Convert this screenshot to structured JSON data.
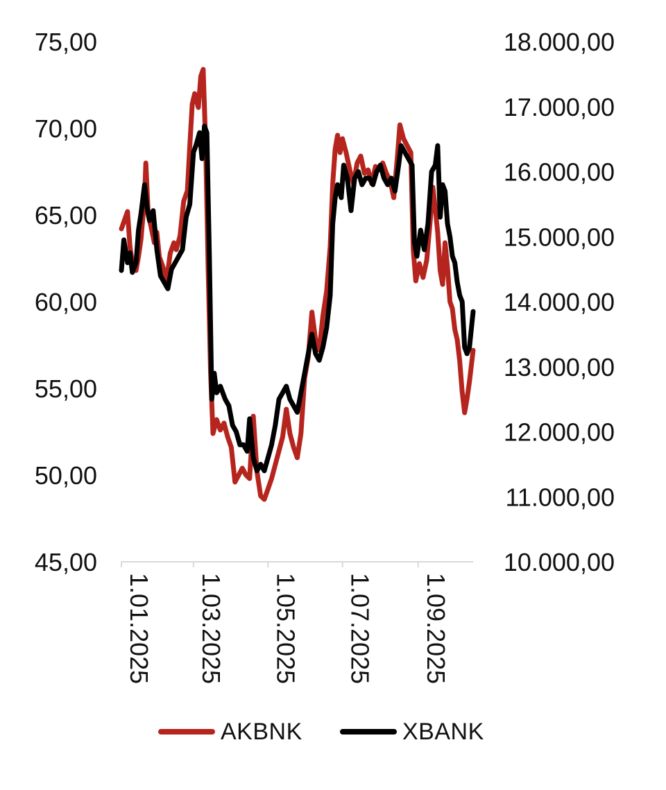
{
  "chart_data": {
    "type": "line",
    "x_type": "date",
    "x_ticks": [
      "1.01.2025",
      "1.03.2025",
      "1.05.2025",
      "1.07.2025",
      "1.09.2025"
    ],
    "x_range": [
      "2025-01-01",
      "2025-10-16"
    ],
    "y_left": {
      "range": [
        45,
        75
      ],
      "ticks": [
        "45,00",
        "50,00",
        "55,00",
        "60,00",
        "65,00",
        "70,00",
        "75,00"
      ]
    },
    "y_right": {
      "range": [
        10000,
        18000
      ],
      "ticks": [
        "10.000,00",
        "11.000,00",
        "12.000,00",
        "13.000,00",
        "14.000,00",
        "15.000,00",
        "16.000,00",
        "17.000,00",
        "18.000,00"
      ]
    },
    "grid": false,
    "legend_position": "bottom",
    "colors": {
      "AKBNK": "#b5251d",
      "XBANK": "#000000"
    },
    "series": [
      {
        "name": "AKBNK",
        "axis": "left",
        "points": [
          [
            "2025-01-01",
            64.2
          ],
          [
            "2025-01-03",
            64.6
          ],
          [
            "2025-01-06",
            65.2
          ],
          [
            "2025-01-08",
            63.2
          ],
          [
            "2025-01-10",
            62.2
          ],
          [
            "2025-01-13",
            61.8
          ],
          [
            "2025-01-15",
            62.6
          ],
          [
            "2025-01-17",
            63.6
          ],
          [
            "2025-01-20",
            66.0
          ],
          [
            "2025-01-21",
            68.0
          ],
          [
            "2025-01-23",
            65.0
          ],
          [
            "2025-01-25",
            64.4
          ],
          [
            "2025-01-28",
            63.4
          ],
          [
            "2025-01-30",
            64.0
          ],
          [
            "2025-02-01",
            62.6
          ],
          [
            "2025-02-04",
            62.0
          ],
          [
            "2025-02-07",
            61.2
          ],
          [
            "2025-02-10",
            62.8
          ],
          [
            "2025-02-13",
            63.4
          ],
          [
            "2025-02-15",
            63.0
          ],
          [
            "2025-02-18",
            63.8
          ],
          [
            "2025-02-21",
            65.8
          ],
          [
            "2025-02-24",
            66.4
          ],
          [
            "2025-02-26",
            69.0
          ],
          [
            "2025-02-28",
            71.4
          ],
          [
            "2025-03-02",
            72.0
          ],
          [
            "2025-03-05",
            71.2
          ],
          [
            "2025-03-07",
            73.0
          ],
          [
            "2025-03-09",
            73.4
          ],
          [
            "2025-03-11",
            69.0
          ],
          [
            "2025-03-13",
            62.0
          ],
          [
            "2025-03-15",
            56.0
          ],
          [
            "2025-03-17",
            52.4
          ],
          [
            "2025-03-20",
            53.2
          ],
          [
            "2025-03-23",
            52.6
          ],
          [
            "2025-03-26",
            53.0
          ],
          [
            "2025-03-29",
            52.2
          ],
          [
            "2025-04-01",
            51.6
          ],
          [
            "2025-04-04",
            49.6
          ],
          [
            "2025-04-07",
            50.0
          ],
          [
            "2025-04-10",
            50.4
          ],
          [
            "2025-04-13",
            50.0
          ],
          [
            "2025-04-16",
            49.8
          ],
          [
            "2025-04-19",
            53.4
          ],
          [
            "2025-04-22",
            50.2
          ],
          [
            "2025-04-25",
            48.8
          ],
          [
            "2025-04-28",
            48.6
          ],
          [
            "2025-05-01",
            49.2
          ],
          [
            "2025-05-04",
            49.8
          ],
          [
            "2025-05-07",
            50.6
          ],
          [
            "2025-05-10",
            51.4
          ],
          [
            "2025-05-13",
            52.2
          ],
          [
            "2025-05-16",
            53.8
          ],
          [
            "2025-05-19",
            52.4
          ],
          [
            "2025-05-22",
            51.6
          ],
          [
            "2025-05-25",
            51.0
          ],
          [
            "2025-05-28",
            52.4
          ],
          [
            "2025-05-31",
            55.6
          ],
          [
            "2025-06-03",
            56.8
          ],
          [
            "2025-06-06",
            59.4
          ],
          [
            "2025-06-09",
            57.8
          ],
          [
            "2025-06-12",
            57.2
          ],
          [
            "2025-06-15",
            59.2
          ],
          [
            "2025-06-18",
            60.6
          ],
          [
            "2025-06-21",
            63.2
          ],
          [
            "2025-06-23",
            66.8
          ],
          [
            "2025-06-25",
            68.8
          ],
          [
            "2025-06-27",
            69.6
          ],
          [
            "2025-06-29",
            68.6
          ],
          [
            "2025-07-01",
            69.4
          ],
          [
            "2025-07-04",
            68.6
          ],
          [
            "2025-07-07",
            67.6
          ],
          [
            "2025-07-10",
            66.8
          ],
          [
            "2025-07-13",
            68.0
          ],
          [
            "2025-07-16",
            68.4
          ],
          [
            "2025-07-19",
            67.4
          ],
          [
            "2025-07-22",
            67.6
          ],
          [
            "2025-07-25",
            66.8
          ],
          [
            "2025-07-28",
            67.8
          ],
          [
            "2025-07-31",
            67.6
          ],
          [
            "2025-08-03",
            68.0
          ],
          [
            "2025-08-06",
            67.4
          ],
          [
            "2025-08-09",
            67.0
          ],
          [
            "2025-08-12",
            66.0
          ],
          [
            "2025-08-15",
            68.4
          ],
          [
            "2025-08-17",
            70.2
          ],
          [
            "2025-08-20",
            69.4
          ],
          [
            "2025-08-23",
            69.0
          ],
          [
            "2025-08-26",
            68.6
          ],
          [
            "2025-08-28",
            63.0
          ],
          [
            "2025-08-30",
            61.2
          ],
          [
            "2025-09-02",
            62.2
          ],
          [
            "2025-09-05",
            61.4
          ],
          [
            "2025-09-08",
            62.4
          ],
          [
            "2025-09-11",
            64.8
          ],
          [
            "2025-09-13",
            66.6
          ],
          [
            "2025-09-15",
            65.4
          ],
          [
            "2025-09-17",
            64.0
          ],
          [
            "2025-09-19",
            61.8
          ],
          [
            "2025-09-21",
            61.0
          ],
          [
            "2025-09-23",
            63.4
          ],
          [
            "2025-09-25",
            62.0
          ],
          [
            "2025-09-27",
            60.0
          ],
          [
            "2025-09-29",
            59.6
          ],
          [
            "2025-10-01",
            58.4
          ],
          [
            "2025-10-03",
            57.8
          ],
          [
            "2025-10-05",
            56.6
          ],
          [
            "2025-10-07",
            54.8
          ],
          [
            "2025-10-09",
            53.6
          ],
          [
            "2025-10-11",
            54.4
          ],
          [
            "2025-10-13",
            55.4
          ],
          [
            "2025-10-16",
            57.2
          ]
        ]
      },
      {
        "name": "XBANK",
        "axis": "right",
        "points": [
          [
            "2025-01-01",
            14480
          ],
          [
            "2025-01-03",
            14950
          ],
          [
            "2025-01-06",
            14600
          ],
          [
            "2025-01-08",
            14750
          ],
          [
            "2025-01-10",
            14450
          ],
          [
            "2025-01-13",
            14600
          ],
          [
            "2025-01-15",
            15100
          ],
          [
            "2025-01-17",
            15350
          ],
          [
            "2025-01-20",
            15800
          ],
          [
            "2025-01-22",
            15450
          ],
          [
            "2025-01-24",
            15250
          ],
          [
            "2025-01-27",
            15400
          ],
          [
            "2025-01-30",
            14800
          ],
          [
            "2025-02-02",
            14400
          ],
          [
            "2025-02-05",
            14300
          ],
          [
            "2025-02-08",
            14200
          ],
          [
            "2025-02-11",
            14500
          ],
          [
            "2025-02-14",
            14600
          ],
          [
            "2025-02-17",
            14700
          ],
          [
            "2025-02-20",
            14800
          ],
          [
            "2025-02-23",
            15300
          ],
          [
            "2025-02-26",
            15500
          ],
          [
            "2025-03-01",
            16300
          ],
          [
            "2025-03-03",
            16400
          ],
          [
            "2025-03-06",
            16600
          ],
          [
            "2025-03-08",
            16200
          ],
          [
            "2025-03-10",
            16700
          ],
          [
            "2025-03-12",
            16600
          ],
          [
            "2025-03-14",
            14700
          ],
          [
            "2025-03-16",
            12500
          ],
          [
            "2025-03-18",
            12900
          ],
          [
            "2025-03-20",
            12600
          ],
          [
            "2025-03-23",
            12700
          ],
          [
            "2025-03-27",
            12500
          ],
          [
            "2025-03-30",
            12400
          ],
          [
            "2025-04-02",
            12100
          ],
          [
            "2025-04-05",
            12000
          ],
          [
            "2025-04-08",
            11800
          ],
          [
            "2025-04-11",
            11800
          ],
          [
            "2025-04-14",
            11700
          ],
          [
            "2025-04-16",
            12200
          ],
          [
            "2025-04-19",
            11600
          ],
          [
            "2025-04-22",
            11400
          ],
          [
            "2025-04-25",
            11500
          ],
          [
            "2025-04-28",
            11400
          ],
          [
            "2025-05-01",
            11600
          ],
          [
            "2025-05-04",
            11800
          ],
          [
            "2025-05-07",
            12100
          ],
          [
            "2025-05-10",
            12500
          ],
          [
            "2025-05-13",
            12600
          ],
          [
            "2025-05-16",
            12700
          ],
          [
            "2025-05-19",
            12500
          ],
          [
            "2025-05-22",
            12400
          ],
          [
            "2025-05-25",
            12300
          ],
          [
            "2025-05-28",
            12600
          ],
          [
            "2025-05-31",
            12900
          ],
          [
            "2025-06-03",
            13200
          ],
          [
            "2025-06-06",
            13500
          ],
          [
            "2025-06-09",
            13200
          ],
          [
            "2025-06-12",
            13100
          ],
          [
            "2025-06-15",
            13300
          ],
          [
            "2025-06-18",
            13600
          ],
          [
            "2025-06-21",
            14100
          ],
          [
            "2025-06-23",
            15200
          ],
          [
            "2025-06-25",
            15600
          ],
          [
            "2025-06-27",
            15800
          ],
          [
            "2025-06-30",
            15600
          ],
          [
            "2025-07-02",
            16100
          ],
          [
            "2025-07-05",
            15900
          ],
          [
            "2025-07-08",
            15400
          ],
          [
            "2025-07-11",
            15900
          ],
          [
            "2025-07-14",
            16000
          ],
          [
            "2025-07-17",
            15800
          ],
          [
            "2025-07-20",
            15900
          ],
          [
            "2025-07-23",
            15900
          ],
          [
            "2025-07-26",
            15800
          ],
          [
            "2025-07-29",
            16000
          ],
          [
            "2025-08-01",
            16100
          ],
          [
            "2025-08-04",
            15900
          ],
          [
            "2025-08-07",
            15800
          ],
          [
            "2025-08-10",
            15900
          ],
          [
            "2025-08-13",
            15700
          ],
          [
            "2025-08-16",
            16100
          ],
          [
            "2025-08-18",
            16400
          ],
          [
            "2025-08-21",
            16300
          ],
          [
            "2025-08-24",
            16200
          ],
          [
            "2025-08-27",
            16100
          ],
          [
            "2025-08-29",
            14900
          ],
          [
            "2025-08-31",
            14700
          ],
          [
            "2025-09-03",
            15100
          ],
          [
            "2025-09-06",
            14800
          ],
          [
            "2025-09-09",
            15200
          ],
          [
            "2025-09-12",
            16000
          ],
          [
            "2025-09-15",
            16100
          ],
          [
            "2025-09-17",
            16400
          ],
          [
            "2025-09-19",
            15300
          ],
          [
            "2025-09-21",
            15800
          ],
          [
            "2025-09-23",
            15700
          ],
          [
            "2025-09-25",
            15200
          ],
          [
            "2025-09-27",
            15000
          ],
          [
            "2025-09-29",
            14700
          ],
          [
            "2025-10-01",
            14600
          ],
          [
            "2025-10-03",
            14300
          ],
          [
            "2025-10-05",
            14100
          ],
          [
            "2025-10-07",
            14000
          ],
          [
            "2025-10-09",
            13300
          ],
          [
            "2025-10-11",
            13200
          ],
          [
            "2025-10-13",
            13300
          ],
          [
            "2025-10-16",
            13850
          ]
        ]
      }
    ]
  }
}
